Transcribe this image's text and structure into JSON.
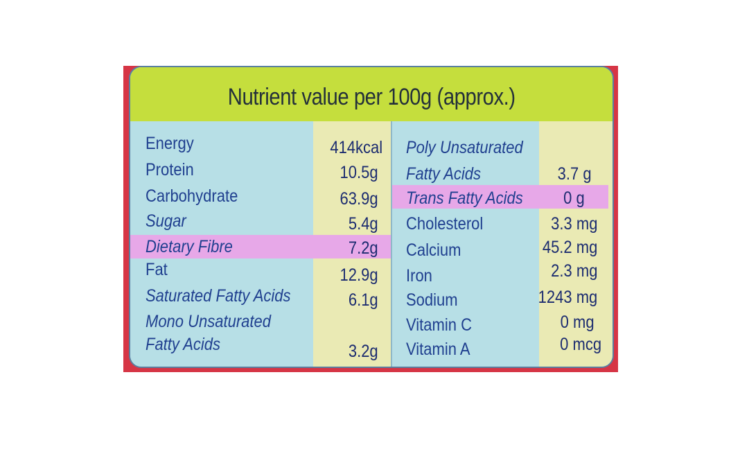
{
  "title": "Nutrient value per 100g (approx.)",
  "left_column": [
    {
      "name": "Energy",
      "value": "414kcal"
    },
    {
      "name": "Protein",
      "value": "10.5g"
    },
    {
      "name": "Carbohydrate",
      "value": "63.9g"
    },
    {
      "name": "Sugar",
      "value": "5.4g"
    },
    {
      "name": "Dietary Fibre",
      "value": "7.2g"
    },
    {
      "name": "Fat",
      "value": "12.9g"
    },
    {
      "name": "Saturated Fatty Acids",
      "value": "6.1g"
    },
    {
      "name_line1": "Mono Unsaturated",
      "name_line2": "Fatty Acids",
      "value": "3.2g"
    }
  ],
  "right_column": [
    {
      "name_line1": "Poly Unsaturated",
      "name_line2": "Fatty Acids",
      "value": "3.7 g"
    },
    {
      "name": "Trans Fatty Acids",
      "value": "0 g"
    },
    {
      "name": "Cholesterol",
      "value": "3.3 mg"
    },
    {
      "name": "Calcium",
      "value": "45.2 mg"
    },
    {
      "name": "Iron",
      "value": "2.3 mg"
    },
    {
      "name": "Sodium",
      "value": "1243 mg"
    },
    {
      "name": "Vitamin C",
      "value": "0 mg"
    },
    {
      "name": "Vitamin A",
      "value": "0 mcg"
    }
  ],
  "colors": {
    "label_blue": "#b7dfe6",
    "label_yellow": "#eaeab4",
    "title_green": "#c5de3d",
    "highlight_pink": "#e7a8e8",
    "package_red": "#d63545"
  }
}
